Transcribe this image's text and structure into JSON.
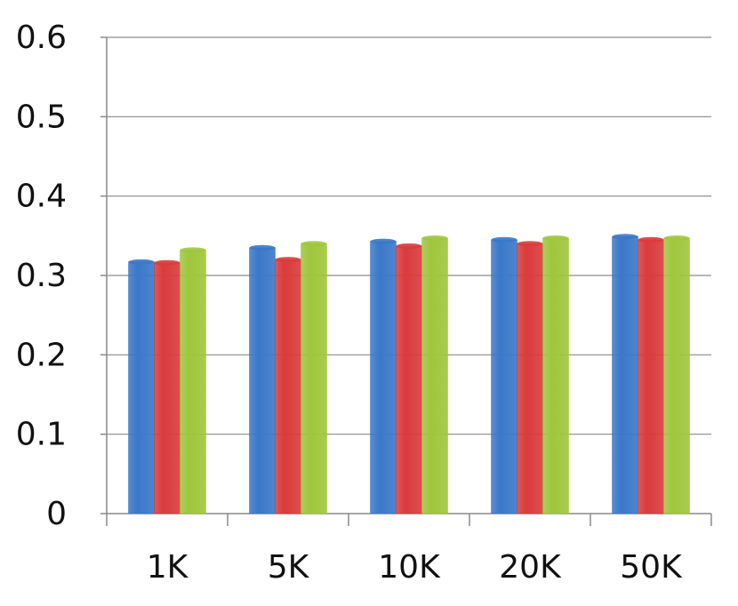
{
  "chart_data": {
    "type": "bar",
    "title": "",
    "xlabel": "",
    "ylabel": "",
    "categories": [
      "1K",
      "5K",
      "10K",
      "20K",
      "50K"
    ],
    "series": [
      {
        "values": [
          0.317,
          0.335,
          0.343,
          0.345,
          0.349
        ]
      },
      {
        "values": [
          0.316,
          0.32,
          0.337,
          0.34,
          0.345
        ]
      },
      {
        "values": [
          0.332,
          0.34,
          0.347,
          0.347,
          0.347
        ]
      }
    ],
    "series_colors": [
      "#3a78c9",
      "#d93b3b",
      "#9fc63c"
    ],
    "ylim": [
      0,
      0.6
    ],
    "yticks": [
      "0",
      "0.1",
      "0.2",
      "0.3",
      "0.4",
      "0.5",
      "0.6"
    ],
    "grid": true,
    "legend": "none"
  }
}
